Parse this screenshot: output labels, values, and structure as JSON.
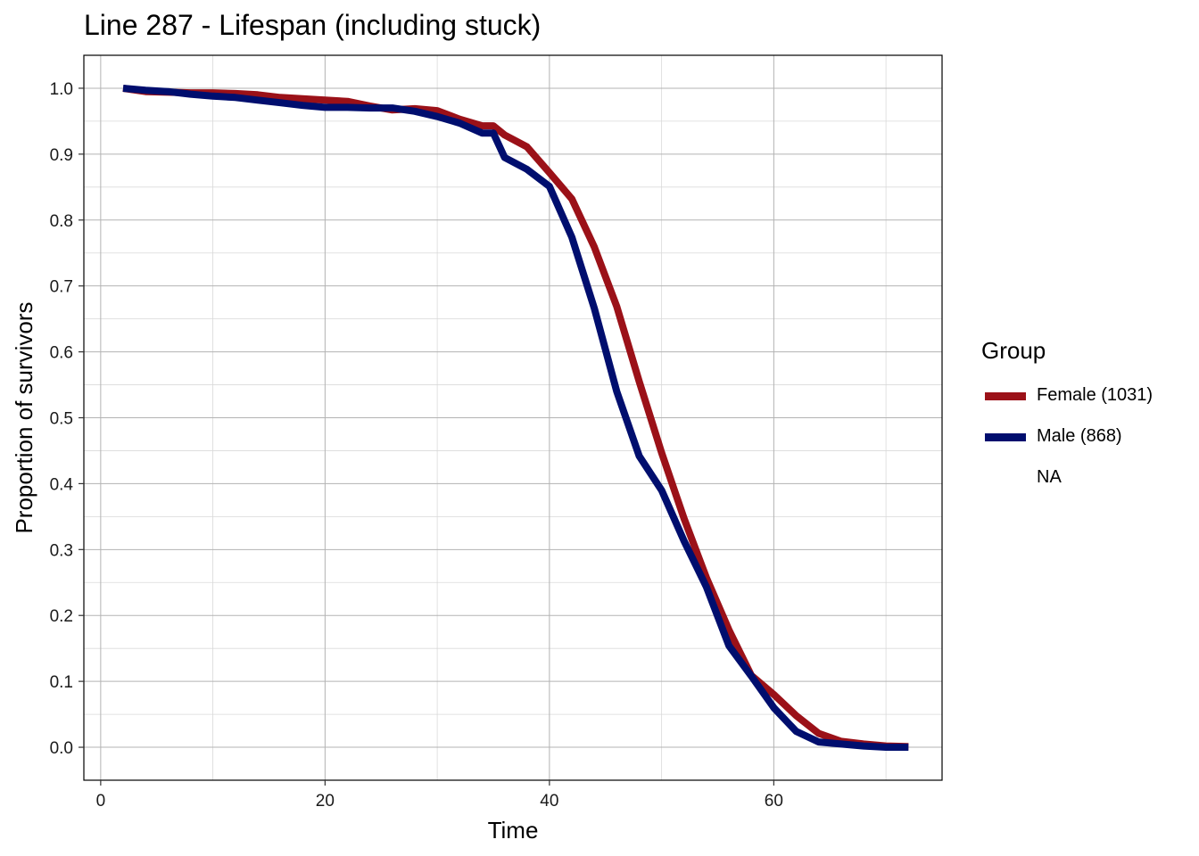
{
  "chart_data": {
    "type": "line",
    "title": "Line 287 - Lifespan (including stuck)",
    "xlabel": "Time",
    "ylabel": "Proportion of survivors",
    "xlim": [
      -1.5,
      75
    ],
    "ylim": [
      -0.05,
      1.05
    ],
    "xticks": [
      0,
      20,
      40,
      60
    ],
    "yticks": [
      0.0,
      0.1,
      0.2,
      0.3,
      0.4,
      0.5,
      0.6,
      0.7,
      0.8,
      0.9,
      1.0
    ],
    "grid": true,
    "legend_position": "right",
    "legend_title": "Group",
    "series": [
      {
        "name": "Female (1031)",
        "color": "#9B1118",
        "x": [
          2,
          4,
          6,
          8,
          10,
          12,
          14,
          16,
          18,
          20,
          22,
          24,
          26,
          28,
          30,
          32,
          34,
          35,
          36,
          38,
          40,
          42,
          44,
          46,
          48,
          50,
          52,
          54,
          56,
          58,
          60,
          62,
          64,
          66,
          68,
          70,
          72
        ],
        "y": [
          1.0,
          0.995,
          0.994,
          0.993,
          0.993,
          0.992,
          0.99,
          0.986,
          0.984,
          0.982,
          0.98,
          0.973,
          0.967,
          0.969,
          0.966,
          0.953,
          0.943,
          0.943,
          0.929,
          0.911,
          0.872,
          0.832,
          0.759,
          0.669,
          0.555,
          0.447,
          0.347,
          0.257,
          0.178,
          0.109,
          0.08,
          0.048,
          0.021,
          0.009,
          0.005,
          0.002,
          0.001
        ]
      },
      {
        "name": "Male (868)",
        "color": "#000E6E",
        "x": [
          2,
          4,
          6,
          8,
          10,
          12,
          14,
          16,
          18,
          20,
          22,
          24,
          26,
          28,
          30,
          32,
          34,
          35,
          36,
          38,
          40,
          42,
          44,
          46,
          48,
          50,
          52,
          54,
          56,
          58,
          60,
          62,
          64,
          66,
          68,
          70,
          72
        ],
        "y": [
          1.0,
          0.997,
          0.995,
          0.991,
          0.988,
          0.986,
          0.982,
          0.978,
          0.974,
          0.971,
          0.971,
          0.97,
          0.97,
          0.965,
          0.957,
          0.947,
          0.932,
          0.932,
          0.895,
          0.877,
          0.851,
          0.774,
          0.666,
          0.54,
          0.442,
          0.39,
          0.313,
          0.243,
          0.154,
          0.108,
          0.06,
          0.024,
          0.008,
          0.005,
          0.002,
          0.0,
          0.0
        ]
      }
    ],
    "extra_legend_entry": "NA"
  }
}
